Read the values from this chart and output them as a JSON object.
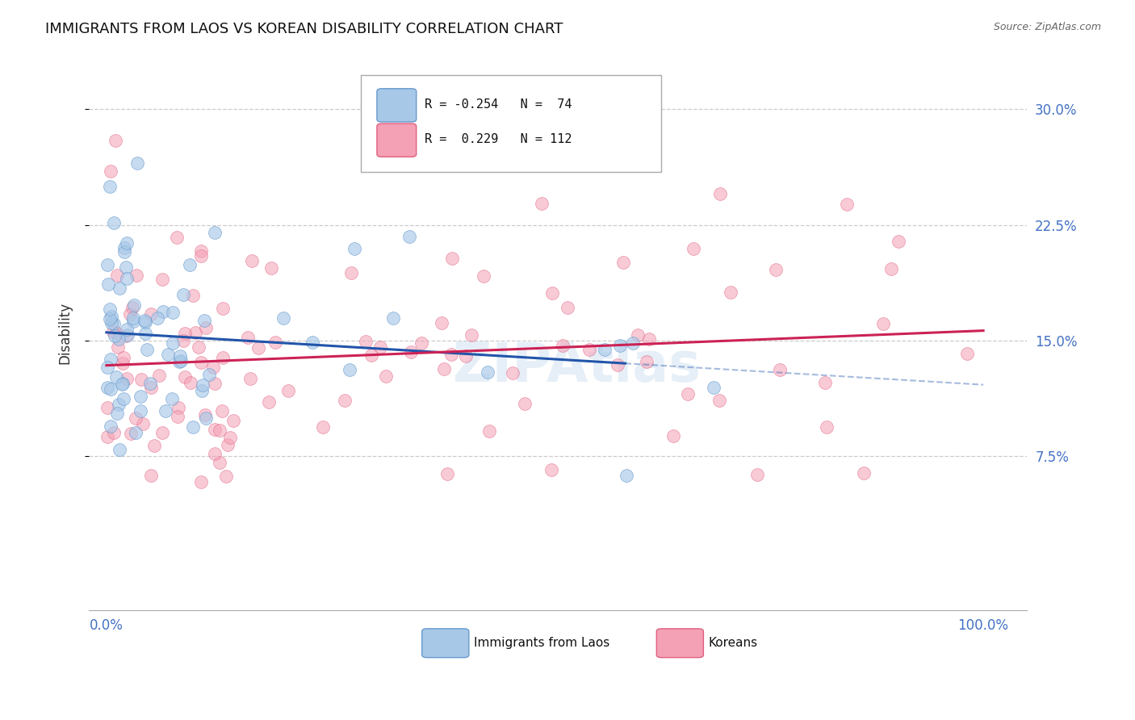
{
  "title": "IMMIGRANTS FROM LAOS VS KOREAN DISABILITY CORRELATION CHART",
  "source": "Source: ZipAtlas.com",
  "ylabel": "Disability",
  "xlim": [
    -0.02,
    1.05
  ],
  "ylim": [
    -0.025,
    0.335
  ],
  "yticks": [
    0.075,
    0.15,
    0.225,
    0.3
  ],
  "ytick_labels": [
    "7.5%",
    "15.0%",
    "22.5%",
    "30.0%"
  ],
  "xtick_labels": [
    "0.0%",
    "100.0%"
  ],
  "xtick_positions": [
    0.0,
    1.0
  ],
  "blue_R": -0.254,
  "blue_N": 74,
  "pink_R": 0.229,
  "pink_N": 112,
  "blue_color": "#a8c8e8",
  "blue_edge": "#6699cc",
  "pink_color": "#f4a0b5",
  "pink_edge": "#e06080",
  "blue_trend_color": "#2255aa",
  "pink_trend_color": "#cc2255",
  "background_color": "#ffffff",
  "grid_color": "#cccccc",
  "title_fontsize": 13,
  "label_color": "#4472c4",
  "seed": 42
}
